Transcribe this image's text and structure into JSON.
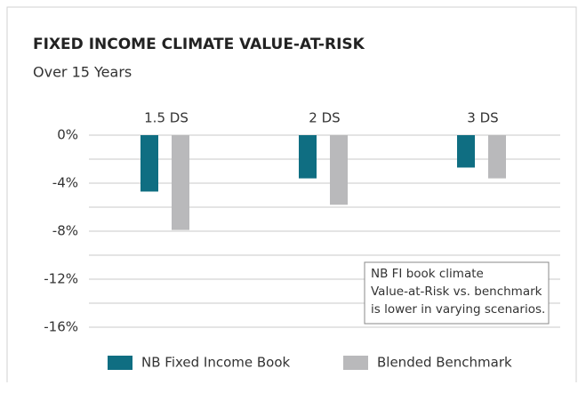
{
  "chart_data": {
    "type": "bar",
    "title": "FIXED INCOME CLIMATE VALUE-AT-RISK",
    "subtitle": "Over 15 Years",
    "categories": [
      "1.5 DS",
      "2 DS",
      "3 DS"
    ],
    "series": [
      {
        "name": "NB Fixed Income Book",
        "color": "#0f6e82",
        "values": [
          -4.7,
          -3.6,
          -2.7
        ]
      },
      {
        "name": "Blended Benchmark",
        "color": "#b9b9bb",
        "values": [
          -7.9,
          -5.8,
          -3.6
        ]
      }
    ],
    "ylim": [
      -16,
      0
    ],
    "yticks": [
      {
        "value": 0,
        "label": "0%"
      },
      {
        "value": -4,
        "label": "-4%"
      },
      {
        "value": -8,
        "label": "-8%"
      },
      {
        "value": -12,
        "label": "-12%"
      },
      {
        "value": -16,
        "label": "-16%"
      }
    ],
    "minor_yticks": [
      -2,
      -6,
      -10,
      -14
    ],
    "grid": true,
    "annotation": [
      "NB FI book climate",
      "Value-at-Risk vs. benchmark",
      "is lower in varying scenarios."
    ]
  }
}
